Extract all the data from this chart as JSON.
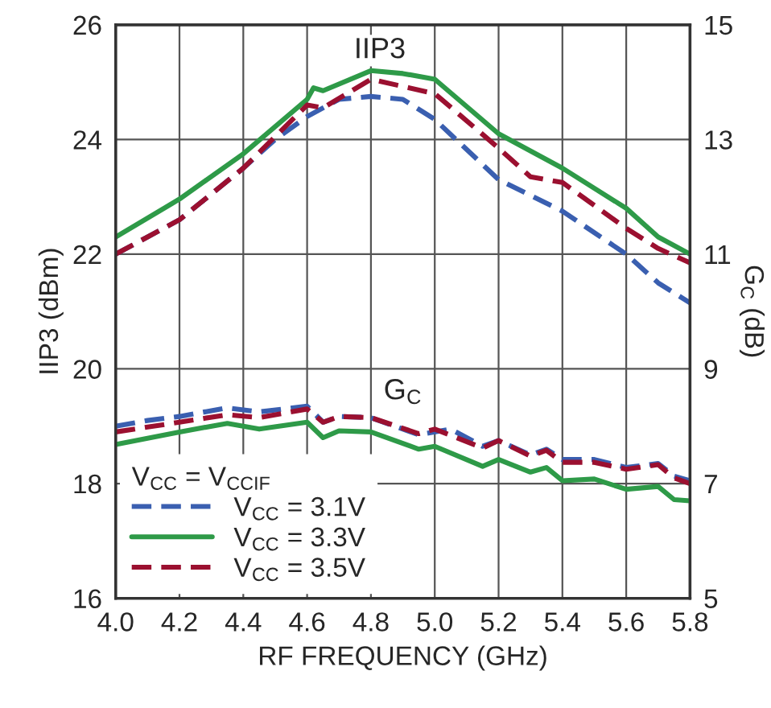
{
  "chart_data": {
    "type": "line",
    "xlabel": "RF FREQUENCY (GHz)",
    "ylabel": "IIP3 (dBm)",
    "y2label": "G$_{C}$ (dB)",
    "legend_title": "V$_{CC}$ = V$_{CCIF}$",
    "legend": "bottom left",
    "grid": true,
    "marker": "none",
    "xlim": [
      4.0,
      5.8
    ],
    "xticks": [
      {
        "value": 4.0,
        "label": "4.0"
      },
      {
        "value": 4.2,
        "label": "4.2"
      },
      {
        "value": 4.4,
        "label": "4.4"
      },
      {
        "value": 4.6,
        "label": "4.6"
      },
      {
        "value": 4.8,
        "label": "4.8"
      },
      {
        "value": 5.0,
        "label": "5.0"
      },
      {
        "value": 5.2,
        "label": "5.2"
      },
      {
        "value": 5.4,
        "label": "5.4"
      },
      {
        "value": 5.6,
        "label": "5.6"
      },
      {
        "value": 5.8,
        "label": "5.8"
      }
    ],
    "ylim": [
      16,
      26
    ],
    "yticks": [
      16,
      18,
      20,
      22,
      24,
      26
    ],
    "y2lim": [
      5,
      15
    ],
    "y2ticks": [
      5,
      7,
      9,
      11,
      13,
      15
    ],
    "annotations": [
      "IIP3",
      "G$_{C}$"
    ],
    "series": [
      {
        "name": "V$_{CC}$ = 3.1V",
        "color": "#3a5fb0",
        "line_style": "dashed",
        "x": [
          4.0,
          4.2,
          4.4,
          4.5,
          4.6,
          4.7,
          4.8,
          4.9,
          5.0,
          5.2,
          5.4,
          5.6,
          5.7,
          5.8
        ],
        "values": [
          22.0,
          22.6,
          23.5,
          24.0,
          24.4,
          24.7,
          24.75,
          24.7,
          24.35,
          23.3,
          22.75,
          22.0,
          21.5,
          21.15
        ]
      },
      {
        "name": "V$_{CC}$ = 3.3V",
        "color": "#2e9a48",
        "line_style": "solid",
        "x": [
          4.0,
          4.2,
          4.4,
          4.6,
          4.62,
          4.65,
          4.8,
          4.9,
          5.0,
          5.2,
          5.4,
          5.6,
          5.7,
          5.8
        ],
        "values": [
          22.3,
          22.96,
          23.75,
          24.7,
          24.9,
          24.85,
          25.2,
          25.15,
          25.05,
          24.1,
          23.5,
          22.8,
          22.3,
          22.0
        ]
      },
      {
        "name": "V$_{CC}$ = 3.5V",
        "color": "#9b1030",
        "line_style": "dashed",
        "x": [
          4.0,
          4.2,
          4.4,
          4.6,
          4.65,
          4.8,
          5.0,
          5.2,
          5.3,
          5.4,
          5.6,
          5.7,
          5.8
        ],
        "values": [
          22.0,
          22.6,
          23.5,
          24.6,
          24.55,
          25.05,
          24.8,
          23.85,
          23.35,
          23.25,
          22.45,
          22.1,
          21.85
        ]
      },
      {
        "color": "#3a5fb0",
        "line_style": "dashed",
        "axis": "y2",
        "x": [
          4.0,
          4.1,
          4.2,
          4.35,
          4.45,
          4.6,
          4.65,
          4.7,
          4.8,
          4.95,
          5.05,
          5.15,
          5.2,
          5.3,
          5.35,
          5.4,
          5.5,
          5.6,
          5.7,
          5.75,
          5.8
        ],
        "values": [
          8.0,
          8.1,
          8.17,
          8.32,
          8.25,
          8.35,
          8.07,
          8.17,
          8.15,
          7.85,
          7.95,
          7.65,
          7.75,
          7.5,
          7.6,
          7.42,
          7.42,
          7.28,
          7.35,
          7.13,
          7.05
        ]
      },
      {
        "color": "#2e9a48",
        "line_style": "solid",
        "axis": "y2",
        "x": [
          4.0,
          4.2,
          4.35,
          4.45,
          4.6,
          4.65,
          4.7,
          4.8,
          4.95,
          5.0,
          5.15,
          5.2,
          5.3,
          5.35,
          5.4,
          5.5,
          5.6,
          5.7,
          5.75,
          5.8
        ],
        "values": [
          7.68,
          7.9,
          8.05,
          7.95,
          8.07,
          7.8,
          7.92,
          7.9,
          7.6,
          7.65,
          7.3,
          7.42,
          7.2,
          7.28,
          7.05,
          7.08,
          6.9,
          6.95,
          6.72,
          6.7
        ]
      },
      {
        "color": "#9b1030",
        "line_style": "dashed",
        "axis": "y2",
        "x": [
          4.0,
          4.2,
          4.35,
          4.45,
          4.6,
          4.65,
          4.7,
          4.8,
          4.95,
          5.0,
          5.15,
          5.2,
          5.3,
          5.35,
          5.4,
          5.5,
          5.6,
          5.7,
          5.75,
          5.8
        ],
        "values": [
          7.9,
          8.07,
          8.2,
          8.15,
          8.3,
          8.07,
          8.17,
          8.15,
          7.87,
          7.95,
          7.62,
          7.75,
          7.48,
          7.58,
          7.37,
          7.37,
          7.25,
          7.33,
          7.1,
          7.0
        ]
      }
    ]
  }
}
